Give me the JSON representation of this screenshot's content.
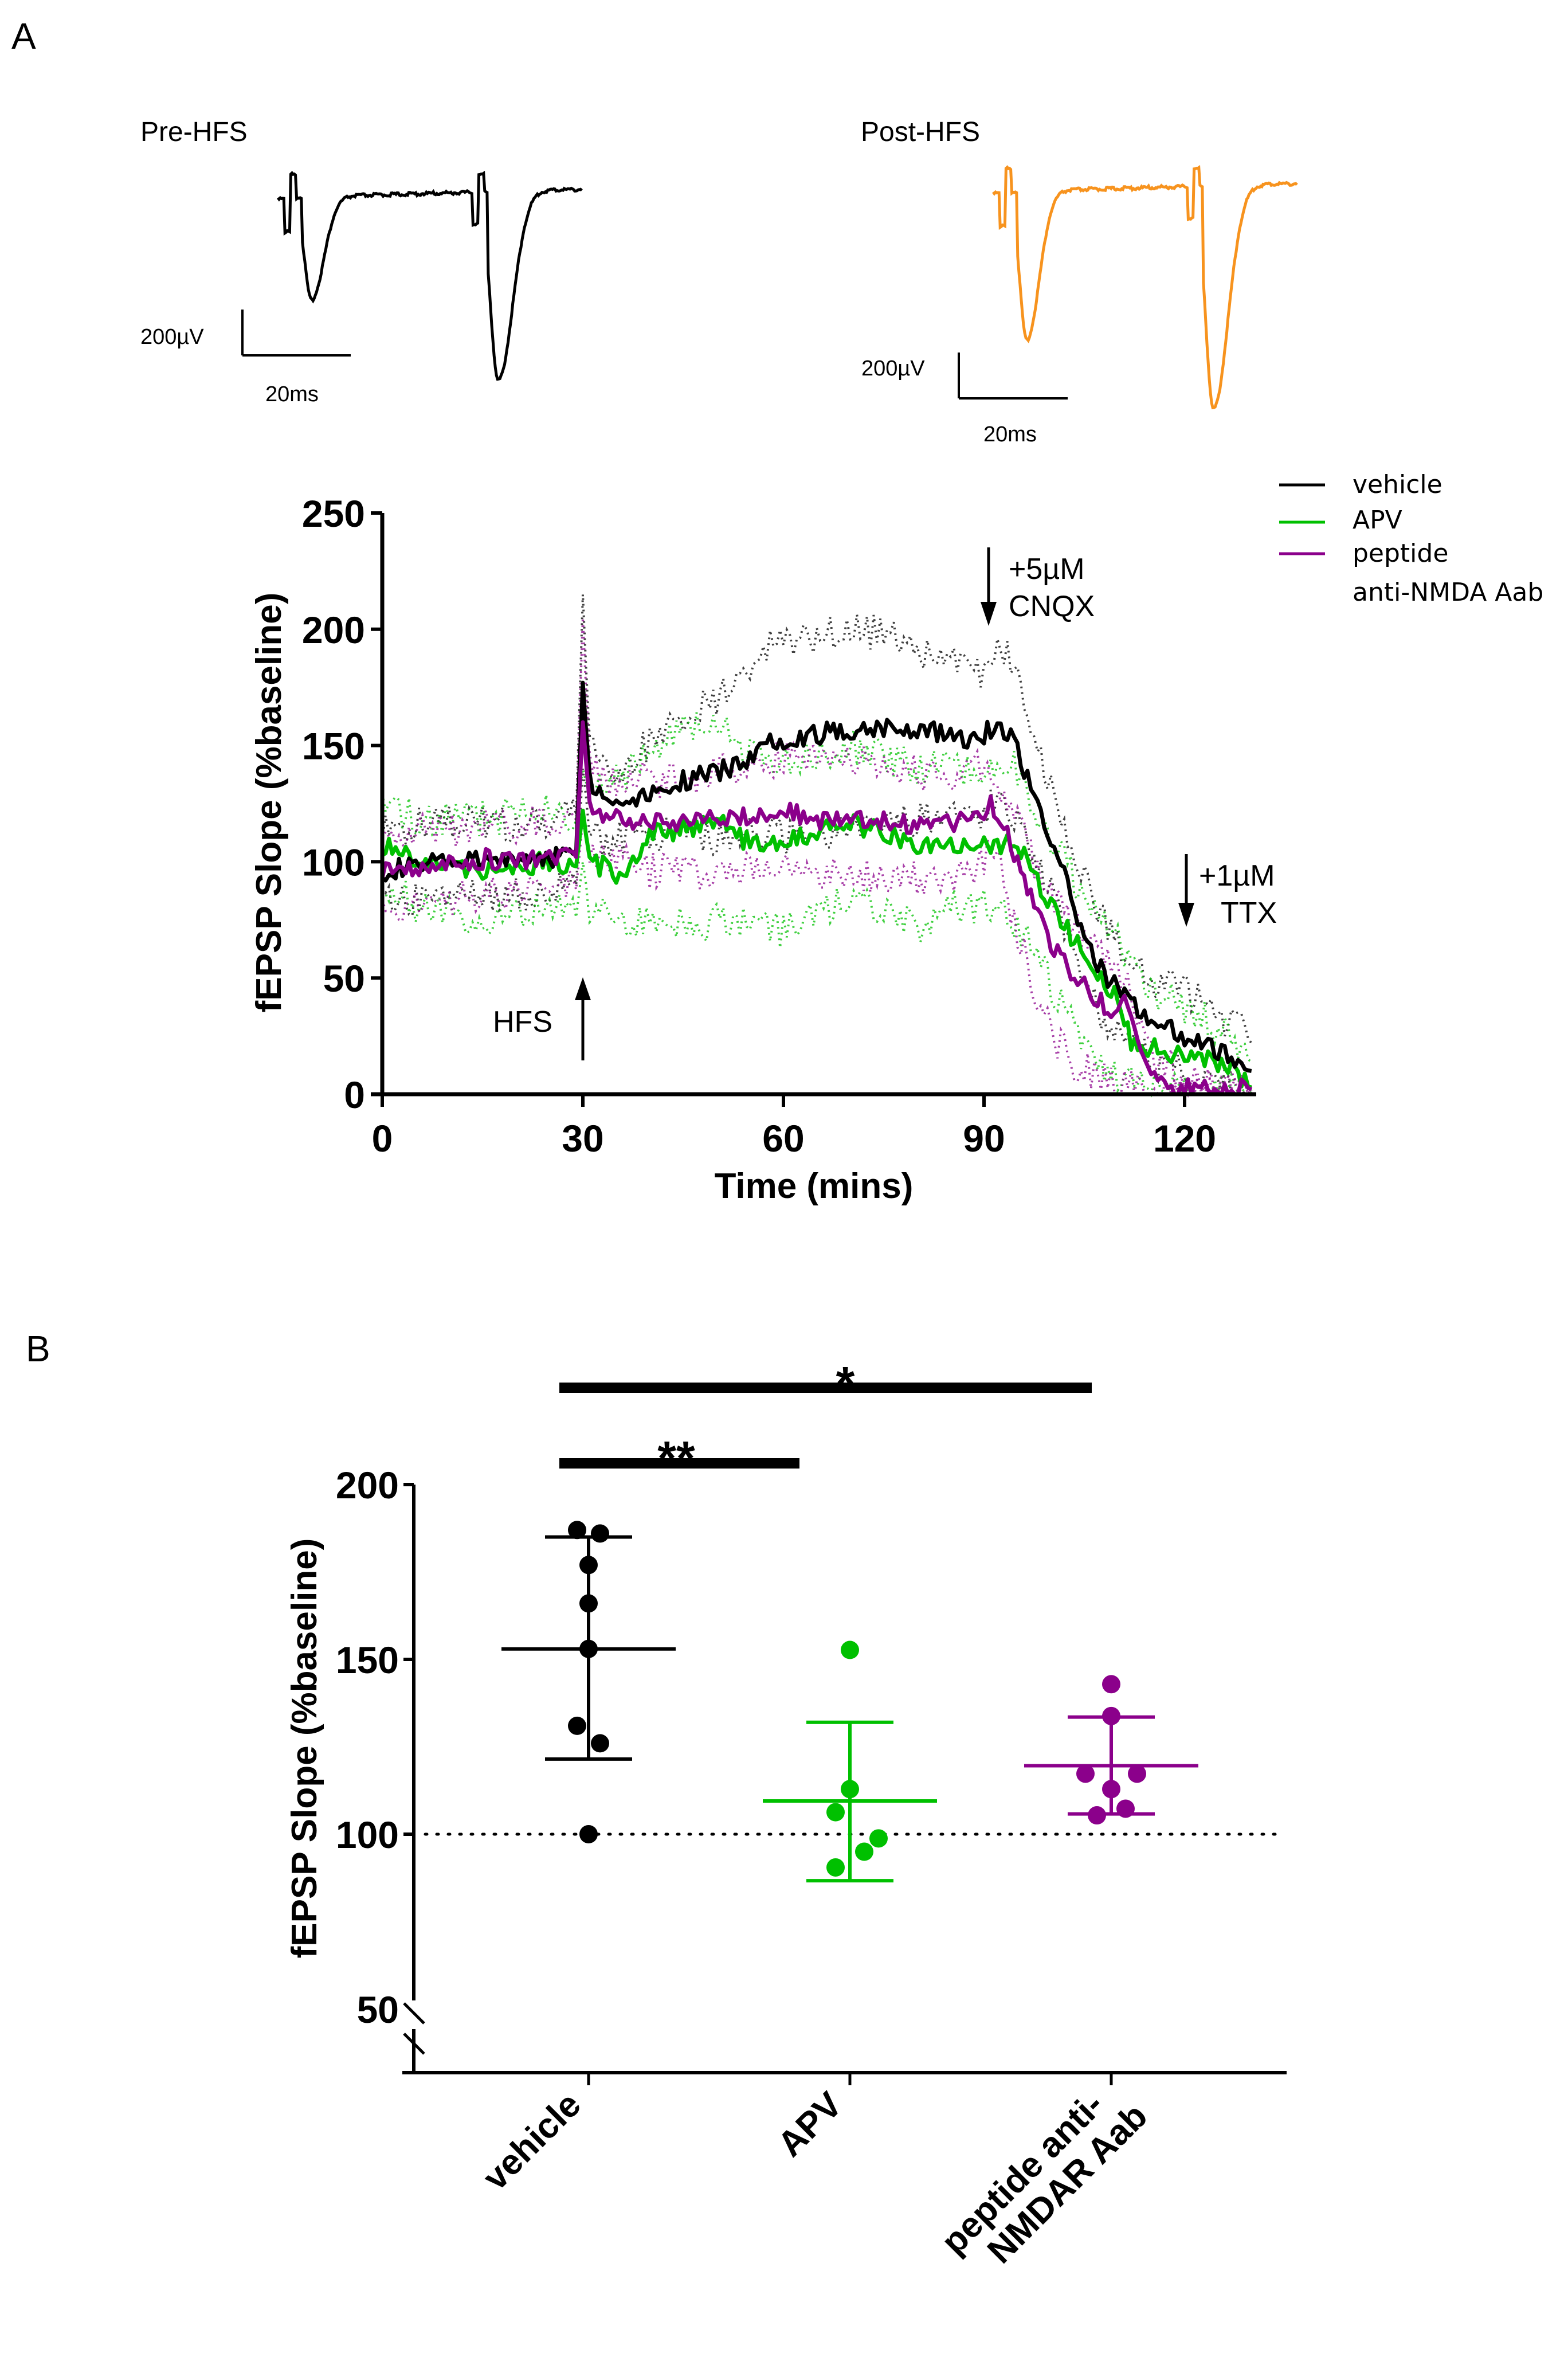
{
  "figure": {
    "panel_a_letter": "A",
    "panel_b_letter": "B"
  },
  "traces": {
    "pre": {
      "label": "Pre-HFS",
      "color": "#000000",
      "scale_v": "200µV",
      "scale_t": "20ms"
    },
    "post": {
      "label": "Post-HFS",
      "color": "#f7931e",
      "scale_v": "200µV",
      "scale_t": "20ms"
    }
  },
  "annotations": {
    "hfs": "HFS",
    "cnqx_line1": "+5µM",
    "cnqx_line2": "CNQX",
    "ttx_line1": "+1µM",
    "ttx_line2": "TTX"
  },
  "legend": [
    {
      "label": "vehicle",
      "color": "#000000"
    },
    {
      "label": "APV",
      "color": "#00c000"
    },
    {
      "label": "peptide",
      "color": "#8b008b"
    },
    {
      "label": "anti-NMDA Aab",
      "color": null
    }
  ],
  "chart_data": [
    {
      "type": "line",
      "title": "",
      "xlabel": "Time (mins)",
      "ylabel": "fEPSP Slope (%baseline)",
      "xlim": [
        0,
        130
      ],
      "ylim": [
        0,
        250
      ],
      "xticks": [
        0,
        30,
        60,
        90,
        120
      ],
      "yticks": [
        0,
        50,
        100,
        150,
        200,
        250
      ],
      "grid": false,
      "legend_position": "top-right",
      "annotations": [
        {
          "text": "HFS",
          "x": 30,
          "arrow": "up"
        },
        {
          "text": "+5µM CNQX",
          "x": 90,
          "arrow": "down"
        },
        {
          "text": "+1µM TTX",
          "x": 120,
          "arrow": "down"
        }
      ],
      "series": [
        {
          "name": "vehicle",
          "color": "#000000",
          "x": [
            0,
            5,
            10,
            15,
            20,
            25,
            29,
            30,
            31,
            33,
            35,
            40,
            45,
            50,
            55,
            58,
            60,
            65,
            70,
            75,
            80,
            85,
            88,
            90,
            92,
            94,
            96,
            98,
            100,
            103,
            106,
            110,
            115,
            120,
            125,
            128,
            130
          ],
          "y": [
            96,
            98,
            100,
            100,
            101,
            102,
            104,
            177,
            135,
            128,
            126,
            130,
            135,
            138,
            145,
            152,
            153,
            155,
            157,
            158,
            157,
            155,
            153,
            155,
            158,
            156,
            140,
            125,
            110,
            85,
            60,
            45,
            32,
            25,
            18,
            15,
            10
          ],
          "upper": [
            112,
            115,
            118,
            117,
            116,
            118,
            120,
            215,
            150,
            145,
            140,
            150,
            160,
            170,
            185,
            195,
            197,
            196,
            200,
            198,
            192,
            185,
            180,
            183,
            193,
            185,
            170,
            150,
            132,
            110,
            85,
            65,
            50,
            45,
            35,
            28,
            22
          ],
          "lower": [
            82,
            84,
            85,
            86,
            86,
            88,
            90,
            140,
            115,
            108,
            110,
            110,
            112,
            110,
            112,
            112,
            110,
            113,
            115,
            118,
            118,
            120,
            120,
            122,
            125,
            122,
            110,
            98,
            88,
            62,
            40,
            28,
            15,
            8,
            4,
            3,
            2
          ]
        },
        {
          "name": "APV",
          "color": "#00c000",
          "x": [
            0,
            5,
            10,
            15,
            20,
            25,
            29,
            30,
            31,
            33,
            35,
            38,
            40,
            45,
            50,
            55,
            60,
            65,
            70,
            75,
            80,
            85,
            90,
            92,
            94,
            96,
            98,
            100,
            103,
            106,
            110,
            112,
            115,
            120,
            125,
            128,
            130
          ],
          "y": [
            107,
            100,
            99,
            97,
            98,
            100,
            98,
            122,
            100,
            98,
            95,
            100,
            112,
            114,
            118,
            108,
            108,
            113,
            116,
            113,
            108,
            108,
            107,
            105,
            110,
            102,
            92,
            82,
            68,
            55,
            42,
            22,
            20,
            15,
            14,
            8,
            3
          ],
          "upper": [
            125,
            120,
            118,
            118,
            120,
            122,
            118,
            140,
            128,
            130,
            135,
            140,
            150,
            155,
            160,
            145,
            142,
            145,
            150,
            145,
            140,
            140,
            140,
            145,
            145,
            132,
            120,
            110,
            95,
            80,
            68,
            55,
            45,
            38,
            28,
            22,
            14
          ],
          "lower": [
            88,
            82,
            78,
            76,
            78,
            80,
            76,
            100,
            80,
            80,
            76,
            75,
            78,
            72,
            74,
            72,
            70,
            78,
            85,
            80,
            72,
            80,
            82,
            80,
            75,
            70,
            60,
            45,
            30,
            18,
            8,
            4,
            2,
            1,
            1,
            1,
            1
          ]
        },
        {
          "name": "peptide anti-NMDA Aab",
          "color": "#8b008b",
          "x": [
            0,
            5,
            10,
            15,
            20,
            25,
            29,
            30,
            31,
            33,
            35,
            40,
            45,
            50,
            55,
            60,
            65,
            70,
            75,
            80,
            85,
            88,
            90,
            91,
            93,
            95,
            97,
            99,
            101,
            104,
            107,
            110,
            111,
            112,
            114,
            116,
            120,
            125,
            130
          ],
          "y": [
            95,
            96,
            99,
            101,
            101,
            103,
            102,
            160,
            125,
            120,
            118,
            116,
            118,
            120,
            120,
            122,
            118,
            120,
            117,
            115,
            116,
            120,
            122,
            125,
            115,
            100,
            85,
            72,
            60,
            50,
            40,
            35,
            40,
            30,
            12,
            3,
            2,
            2,
            2
          ],
          "upper": [
            110,
            112,
            114,
            115,
            116,
            118,
            118,
            205,
            140,
            138,
            135,
            135,
            135,
            138,
            142,
            145,
            143,
            143,
            140,
            138,
            138,
            140,
            140,
            142,
            130,
            118,
            102,
            92,
            80,
            70,
            60,
            50,
            48,
            42,
            28,
            15,
            8,
            5,
            4
          ],
          "lower": [
            82,
            82,
            84,
            86,
            86,
            88,
            88,
            118,
            105,
            102,
            100,
            96,
            95,
            96,
            98,
            100,
            95,
            96,
            94,
            92,
            92,
            95,
            100,
            105,
            92,
            70,
            50,
            35,
            22,
            12,
            8,
            5,
            4,
            3,
            2,
            1,
            1,
            1,
            1
          ]
        }
      ]
    },
    {
      "type": "scatter",
      "title": "",
      "xlabel": "",
      "ylabel": "fEPSP Slope  (%baseline)",
      "ylim": [
        50,
        200
      ],
      "yticks": [
        50,
        100,
        150,
        200
      ],
      "axis_break": true,
      "reference_line": {
        "y": 100,
        "style": "dotted"
      },
      "categories": [
        "vehicle",
        "APV",
        "peptide anti-NMDAR Aab"
      ],
      "groups": [
        {
          "name": "vehicle",
          "color": "#000000",
          "values": [
            187,
            186,
            177,
            166,
            153,
            131,
            126,
            100
          ],
          "mean": 153,
          "error_upper": 185,
          "error_lower": 121.5
        },
        {
          "name": "APV",
          "color": "#00c000",
          "values": [
            152.7,
            112.9,
            106.3,
            98.8,
            95,
            90.5
          ],
          "mean": 109.5,
          "error_upper": 132,
          "error_lower": 86.7
        },
        {
          "name": "peptide anti-NMDAR Aab",
          "color": "#8b008b",
          "values": [
            142.9,
            133.8,
            117.3,
            117.3,
            112.9,
            107.3,
            105.4
          ],
          "mean": 119.6,
          "error_upper": 133.5,
          "error_lower": 105.8
        }
      ],
      "significance": [
        {
          "from": "vehicle",
          "to": "APV",
          "label": "**"
        },
        {
          "from": "vehicle",
          "to": "peptide anti-NMDAR Aab",
          "label": "*"
        }
      ]
    }
  ]
}
